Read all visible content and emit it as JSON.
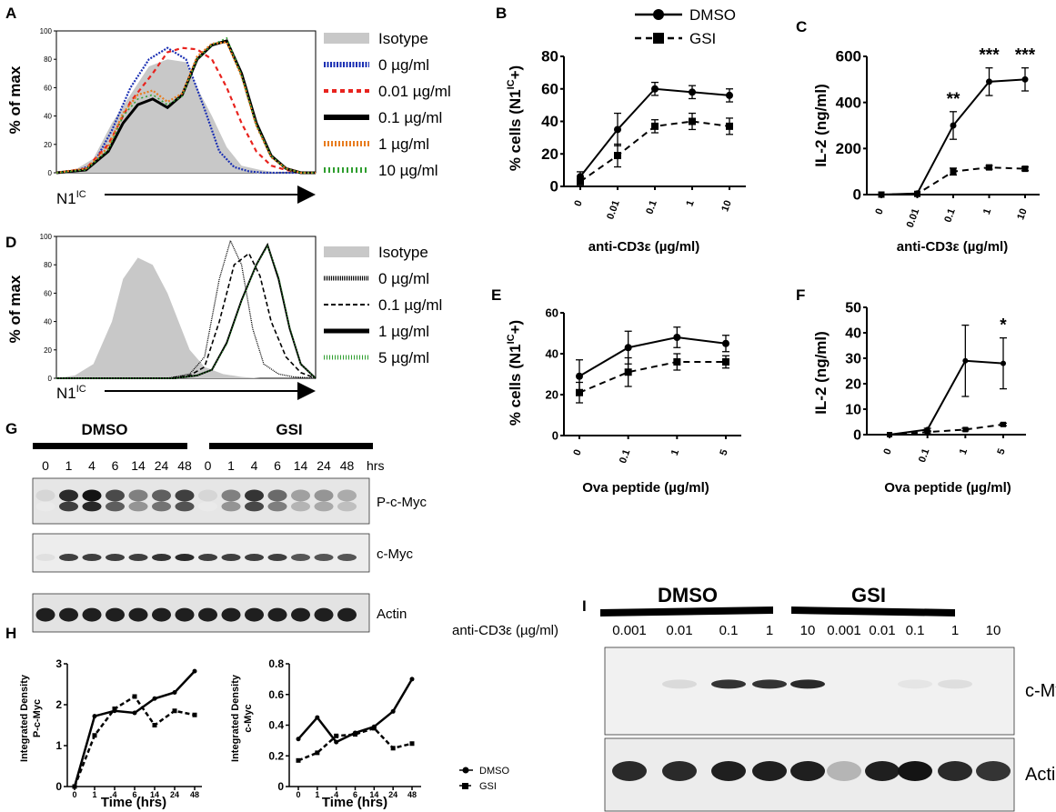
{
  "panel_letters": {
    "A": "A",
    "B": "B",
    "C": "C",
    "D": "D",
    "E": "E",
    "F": "F",
    "G": "G",
    "H": "H",
    "I": "I"
  },
  "colors": {
    "black": "#000000",
    "isotype": "#c8c8c8",
    "blue": "#1a2fb3",
    "red": "#e8231e",
    "orange": "#e87c1e",
    "green": "#2f9e2f"
  },
  "chart_data": [
    {
      "panel": "A",
      "type": "histogram",
      "ylabel": "% of max",
      "xlabel": "N1",
      "xlabel_sup": "IC",
      "yticks": [
        "0",
        "20",
        "40",
        "60",
        "80",
        "100"
      ],
      "legend": [
        "Isotype",
        "0 µg/ml",
        "0.01 µg/ml",
        "0.1 µg/ml",
        "1 µg/ml",
        "10 µg/ml"
      ],
      "series": [
        {
          "name": "Isotype",
          "x": [
            0,
            5,
            10,
            15,
            20,
            25,
            30,
            35,
            38,
            42,
            46,
            50,
            55,
            60,
            65,
            70
          ],
          "y": [
            0,
            2,
            10,
            35,
            55,
            75,
            80,
            78,
            60,
            40,
            18,
            5,
            2,
            0,
            0,
            0
          ]
        },
        {
          "name": "0 µg/ml",
          "x": [
            0,
            5,
            10,
            15,
            20,
            25,
            30,
            35,
            40,
            44,
            48,
            52,
            56,
            60,
            70
          ],
          "y": [
            0,
            1,
            6,
            30,
            60,
            80,
            88,
            80,
            45,
            15,
            4,
            1,
            0,
            0,
            0
          ]
        },
        {
          "name": "0.01 µg/ml",
          "x": [
            0,
            8,
            14,
            20,
            26,
            30,
            34,
            38,
            42,
            46,
            50,
            54,
            58,
            62,
            66,
            70
          ],
          "y": [
            0,
            3,
            20,
            50,
            70,
            85,
            88,
            87,
            80,
            60,
            35,
            15,
            5,
            2,
            0,
            0
          ]
        },
        {
          "name": "0.1 µg/ml",
          "x": [
            0,
            8,
            14,
            18,
            22,
            26,
            30,
            34,
            38,
            42,
            46,
            50,
            54,
            58,
            62,
            66,
            70
          ],
          "y": [
            0,
            2,
            15,
            35,
            48,
            52,
            46,
            55,
            80,
            90,
            93,
            70,
            35,
            12,
            3,
            0,
            0
          ]
        },
        {
          "name": "1 µg/ml",
          "x": [
            0,
            8,
            14,
            18,
            22,
            26,
            30,
            34,
            38,
            42,
            46,
            50,
            54,
            58,
            62,
            66,
            70
          ],
          "y": [
            0,
            3,
            18,
            42,
            55,
            58,
            50,
            56,
            82,
            91,
            92,
            68,
            33,
            11,
            3,
            0,
            0
          ]
        },
        {
          "name": "10 µg/ml",
          "x": [
            0,
            8,
            14,
            18,
            22,
            26,
            30,
            34,
            38,
            42,
            46,
            50,
            54,
            58,
            62,
            66,
            70
          ],
          "y": [
            0,
            2,
            16,
            40,
            52,
            55,
            48,
            54,
            80,
            90,
            95,
            69,
            34,
            12,
            3,
            0,
            0
          ]
        }
      ]
    },
    {
      "panel": "B",
      "type": "line",
      "ylabel": "% cells (N1",
      "ylabel_sup": "IC",
      "ylabel_end": "+)",
      "xlabel": "anti-CD3ε (µg/ml)",
      "categories": [
        "0",
        "0.01",
        "0.1",
        "1",
        "10"
      ],
      "yticks": [
        "0",
        "20",
        "40",
        "60",
        "80"
      ],
      "ylim": [
        0,
        80
      ],
      "legend_title": [
        "DMSO",
        "GSI"
      ],
      "series": [
        {
          "name": "DMSO",
          "values": [
            6,
            35,
            60,
            58,
            56
          ],
          "err": [
            3,
            10,
            4,
            4,
            4
          ]
        },
        {
          "name": "GSI",
          "values": [
            3,
            19,
            37,
            40,
            37
          ],
          "err": [
            2,
            7,
            4,
            5,
            5
          ]
        }
      ]
    },
    {
      "panel": "C",
      "type": "line",
      "ylabel": "IL-2 (ng/ml)",
      "xlabel": "anti-CD3ε (µg/ml)",
      "categories": [
        "0",
        "0.01",
        "0.1",
        "1",
        "10"
      ],
      "yticks": [
        "0",
        "200",
        "400",
        "600"
      ],
      "ylim": [
        0,
        600
      ],
      "annotations": [
        "**",
        "***",
        "***"
      ],
      "series": [
        {
          "name": "DMSO",
          "values": [
            0,
            5,
            300,
            490,
            500
          ],
          "err": [
            0,
            0,
            60,
            60,
            50
          ]
        },
        {
          "name": "GSI",
          "values": [
            0,
            3,
            100,
            118,
            112
          ],
          "err": [
            0,
            0,
            15,
            8,
            8
          ]
        }
      ]
    },
    {
      "panel": "D",
      "type": "histogram",
      "ylabel": "% of max",
      "xlabel": "N1",
      "xlabel_sup": "IC",
      "yticks": [
        "0",
        "20",
        "40",
        "60",
        "80",
        "100"
      ],
      "legend": [
        "Isotype",
        "0 µg/ml",
        "0.1 µg/ml",
        "1 µg/ml",
        "5 µg/ml"
      ],
      "series": [
        {
          "name": "Isotype",
          "x": [
            0,
            5,
            10,
            15,
            18,
            22,
            26,
            30,
            33,
            36,
            40,
            45,
            50,
            55,
            70
          ],
          "y": [
            0,
            2,
            10,
            40,
            70,
            85,
            80,
            60,
            40,
            20,
            8,
            3,
            1,
            0,
            0
          ]
        },
        {
          "name": "0 µg/ml",
          "x": [
            0,
            30,
            36,
            40,
            44,
            47,
            50,
            53,
            56,
            60,
            64,
            70
          ],
          "y": [
            0,
            0,
            3,
            15,
            70,
            97,
            80,
            35,
            10,
            3,
            1,
            0
          ]
        },
        {
          "name": "0.1 µg/ml",
          "x": [
            0,
            30,
            36,
            40,
            44,
            48,
            52,
            55,
            58,
            62,
            66,
            70
          ],
          "y": [
            0,
            0,
            2,
            8,
            40,
            80,
            88,
            72,
            40,
            15,
            4,
            0
          ]
        },
        {
          "name": "1 µg/ml",
          "x": [
            0,
            32,
            38,
            42,
            46,
            50,
            54,
            57,
            60,
            63,
            66,
            70
          ],
          "y": [
            0,
            0,
            2,
            6,
            25,
            55,
            80,
            94,
            70,
            35,
            10,
            0
          ]
        },
        {
          "name": "5 µg/ml",
          "x": [
            0,
            32,
            38,
            42,
            46,
            50,
            54,
            57,
            60,
            63,
            66,
            70
          ],
          "y": [
            0,
            0,
            2,
            6,
            24,
            54,
            80,
            93,
            72,
            36,
            10,
            0
          ]
        }
      ]
    },
    {
      "panel": "E",
      "type": "line",
      "ylabel": "% cells (N1",
      "ylabel_sup": "IC",
      "ylabel_end": "+)",
      "xlabel": "Ova peptide (µg/ml)",
      "categories": [
        "0",
        "0.1",
        "1",
        "5"
      ],
      "yticks": [
        "0",
        "20",
        "40",
        "60"
      ],
      "ylim": [
        0,
        60
      ],
      "series": [
        {
          "name": "DMSO",
          "values": [
            29,
            43,
            48,
            45
          ],
          "err": [
            8,
            8,
            5,
            4
          ]
        },
        {
          "name": "GSI",
          "values": [
            21,
            31,
            36,
            36
          ],
          "err": [
            5,
            7,
            4,
            3
          ]
        }
      ]
    },
    {
      "panel": "F",
      "type": "line",
      "ylabel": "IL-2 (ng/ml)",
      "xlabel": "Ova peptide (µg/ml)",
      "categories": [
        "0",
        "0.1",
        "1",
        "5"
      ],
      "yticks": [
        "0",
        "10",
        "20",
        "30",
        "40",
        "50"
      ],
      "ylim": [
        0,
        50
      ],
      "annotations": [
        "*"
      ],
      "series": [
        {
          "name": "DMSO",
          "values": [
            0,
            2,
            29,
            28
          ],
          "err": [
            0,
            0.5,
            14,
            10
          ]
        },
        {
          "name": "GSI",
          "values": [
            0,
            1,
            2,
            4
          ],
          "err": [
            0,
            0.3,
            0.5,
            0.5
          ]
        }
      ]
    },
    {
      "panel": "H-left",
      "type": "line",
      "ylabel": [
        "Integrated Density",
        "P-c-Myc"
      ],
      "xlabel": "Time (hrs)",
      "categories": [
        "0",
        "1",
        "4",
        "6",
        "14",
        "24",
        "48"
      ],
      "yticks": [
        "0",
        "1",
        "2",
        "3"
      ],
      "ylim": [
        0,
        3
      ],
      "series": [
        {
          "name": "DMSO",
          "values": [
            0,
            1.72,
            1.85,
            1.8,
            2.15,
            2.3,
            2.82
          ]
        },
        {
          "name": "GSI",
          "values": [
            0,
            1.25,
            1.9,
            2.2,
            1.5,
            1.85,
            1.75
          ]
        }
      ]
    },
    {
      "panel": "H-right",
      "type": "line",
      "ylabel": [
        "Integrated Density",
        "c-Myc"
      ],
      "xlabel": "Time (hrs)",
      "categories": [
        "0",
        "1",
        "4",
        "6",
        "14",
        "24",
        "48"
      ],
      "yticks": [
        "0",
        "0.2",
        "0.4",
        "0.6",
        "0.8"
      ],
      "ylim": [
        0,
        0.8
      ],
      "legend": [
        "DMSO",
        "GSI"
      ],
      "series": [
        {
          "name": "DMSO",
          "values": [
            0.31,
            0.45,
            0.29,
            0.35,
            0.39,
            0.49,
            0.7
          ]
        },
        {
          "name": "GSI",
          "values": [
            0.17,
            0.22,
            0.33,
            0.34,
            0.38,
            0.25,
            0.28
          ]
        }
      ]
    }
  ],
  "blot_g": {
    "group1": "DMSO",
    "group2": "GSI",
    "lanes": [
      "0",
      "1",
      "4",
      "6",
      "14",
      "24",
      "48",
      "0",
      "1",
      "4",
      "6",
      "14",
      "24",
      "48"
    ],
    "hrs": "hrs",
    "rows": [
      "P-c-Myc",
      "c-Myc",
      "Actin"
    ],
    "intensity": {
      "P-c-Myc": [
        0.1,
        0.9,
        1.0,
        0.75,
        0.5,
        0.65,
        0.8,
        0.1,
        0.5,
        0.85,
        0.6,
        0.35,
        0.4,
        0.3
      ],
      "c-Myc": [
        0.05,
        0.8,
        0.8,
        0.8,
        0.8,
        0.85,
        0.9,
        0.8,
        0.8,
        0.8,
        0.8,
        0.7,
        0.7,
        0.7
      ],
      "Actin": [
        0.95,
        0.95,
        0.95,
        0.95,
        0.95,
        0.95,
        0.95,
        0.95,
        0.95,
        0.95,
        0.95,
        0.95,
        0.95,
        0.95
      ]
    }
  },
  "blot_i": {
    "group1": "DMSO",
    "group2": "GSI",
    "row_label": "anti-CD3ε (µg/ml)",
    "lanes": [
      "0.001",
      "0.01",
      "0.1",
      "1",
      "10",
      "0.001",
      "0.01",
      "0.1",
      "1",
      "10"
    ],
    "rows": [
      "c-Myc",
      "Actin"
    ],
    "intensity": {
      "c-Myc": [
        0.0,
        0.08,
        0.85,
        0.85,
        0.9,
        0.0,
        0.0,
        0.03,
        0.06,
        0.0
      ],
      "Actin": [
        0.9,
        0.9,
        0.95,
        0.95,
        0.95,
        0.25,
        0.95,
        1.0,
        0.9,
        0.85
      ]
    }
  }
}
